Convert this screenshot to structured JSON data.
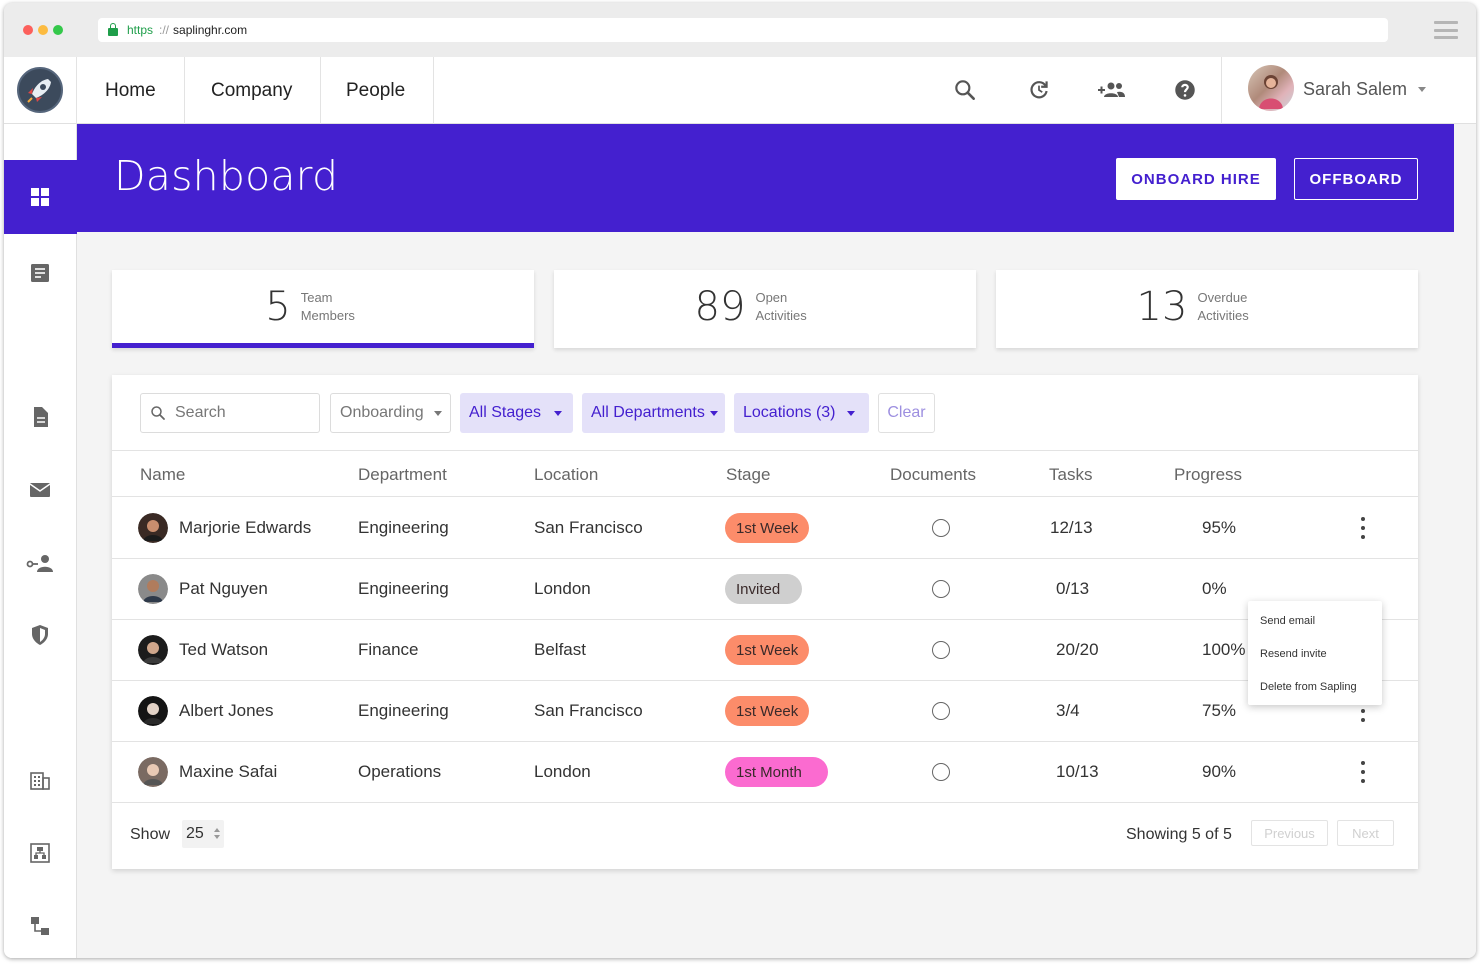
{
  "browser": {
    "url_scheme": "https",
    "url_separator": "://",
    "url_host": "saplinghr.com"
  },
  "nav": {
    "tabs": [
      "Home",
      "Company",
      "People"
    ],
    "user_name": "Sarah Salem"
  },
  "banner": {
    "title": "Dashboard",
    "onboard_label": "ONBOARD HIRE",
    "offboard_label": "OFFBOARD"
  },
  "stats": [
    {
      "value": "5",
      "label_line1": "Team",
      "label_line2": "Members"
    },
    {
      "value": "89",
      "label_line1": "Open",
      "label_line2": "Activities"
    },
    {
      "value": "13",
      "label_line1": "Overdue",
      "label_line2": "Activities"
    }
  ],
  "filters": {
    "search_placeholder": "Search",
    "onboarding": "Onboarding",
    "stages": "All Stages",
    "departments": "All Departments",
    "locations": "Locations (3)",
    "clear": "Clear"
  },
  "table": {
    "columns": [
      "Name",
      "Department",
      "Location",
      "Stage",
      "Documents",
      "Tasks",
      "Progress"
    ],
    "rows": [
      {
        "name": "Marjorie Edwards",
        "department": "Engineering",
        "location": "San Francisco",
        "stage": "1st Week",
        "tasks": "12/13",
        "progress": "95%"
      },
      {
        "name": "Pat Nguyen",
        "department": "Engineering",
        "location": "London",
        "stage": "Invited",
        "tasks": "0/13",
        "progress": "0%"
      },
      {
        "name": "Ted Watson",
        "department": "Finance",
        "location": "Belfast",
        "stage": "1st Week",
        "tasks": "20/20",
        "progress": "100%"
      },
      {
        "name": "Albert Jones",
        "department": "Engineering",
        "location": "San Francisco",
        "stage": "1st Week",
        "tasks": "3/4",
        "progress": "75%"
      },
      {
        "name": "Maxine Safai",
        "department": "Operations",
        "location": "London",
        "stage": "1st Month",
        "tasks": "10/13",
        "progress": "90%"
      }
    ]
  },
  "footer": {
    "show_label": "Show",
    "page_size": "25",
    "showing": "Showing 5 of 5",
    "previous": "Previous",
    "next": "Next"
  },
  "row_menu": {
    "items": [
      "Send email",
      "Resend invite",
      "Delete from Sapling"
    ]
  },
  "colors": {
    "brand": "#4420cf",
    "stage_week": "#fc8c6a",
    "stage_invited": "#cfcfcf",
    "stage_month": "#fb6bd0"
  },
  "icons": {
    "nav": [
      "search-icon",
      "refresh-icon",
      "add-people-icon",
      "help-icon"
    ],
    "sidebar": [
      "dashboard-icon",
      "list-icon",
      "document-icon",
      "mail-icon",
      "key-person-icon",
      "shield-icon",
      "building-icon",
      "org-chart-icon",
      "workflow-icon"
    ]
  }
}
